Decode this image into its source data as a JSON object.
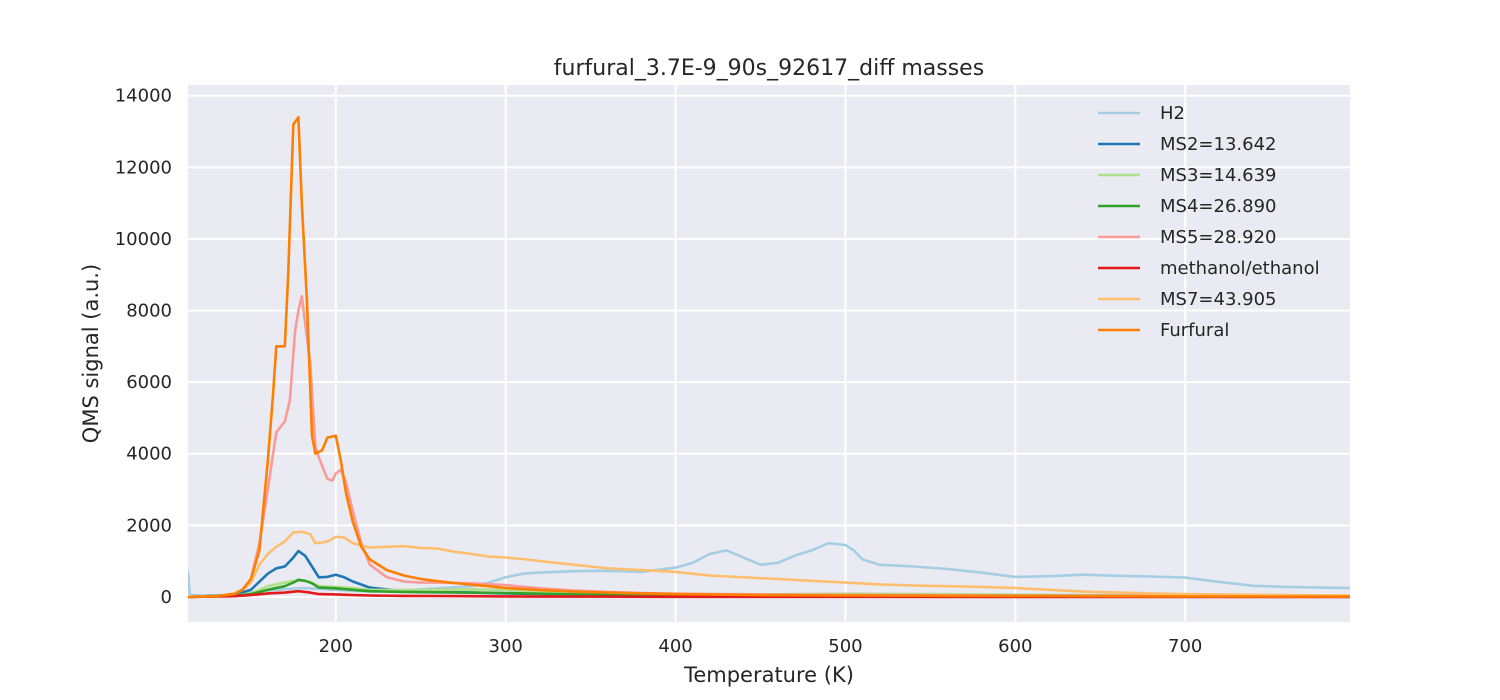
{
  "chart_data": {
    "type": "line",
    "title": "furfural_3.7E-9_90s_92617_diff masses",
    "xlabel": "Temperature (K)",
    "ylabel": "QMS signal (a.u.)",
    "xlim": [
      113,
      797
    ],
    "ylim": [
      -700,
      14300
    ],
    "xticks": [
      200,
      300,
      400,
      500,
      600,
      700
    ],
    "yticks": [
      0,
      2000,
      4000,
      6000,
      8000,
      10000,
      12000,
      14000
    ],
    "grid": true,
    "legend_position": "top-right",
    "series": [
      {
        "name": "H2",
        "color": "#a6cee3",
        "x": [
          113,
          114,
          115,
          120,
          140,
          160,
          180,
          200,
          220,
          240,
          260,
          280,
          290,
          300,
          310,
          320,
          340,
          360,
          380,
          400,
          410,
          420,
          430,
          440,
          450,
          460,
          470,
          480,
          490,
          500,
          505,
          510,
          520,
          540,
          560,
          580,
          600,
          620,
          640,
          660,
          680,
          700,
          720,
          740,
          760,
          780,
          797
        ],
        "y": [
          700,
          100,
          50,
          40,
          60,
          180,
          250,
          200,
          150,
          180,
          240,
          300,
          400,
          550,
          650,
          680,
          720,
          730,
          700,
          820,
          950,
          1200,
          1300,
          1100,
          900,
          950,
          1150,
          1300,
          1500,
          1450,
          1300,
          1050,
          900,
          850,
          780,
          680,
          560,
          580,
          620,
          590,
          570,
          540,
          420,
          310,
          280,
          260,
          250
        ]
      },
      {
        "name": "MS2=13.642",
        "color": "#1f78b4",
        "x": [
          113,
          140,
          150,
          160,
          165,
          170,
          175,
          178,
          182,
          186,
          190,
          195,
          200,
          205,
          210,
          220,
          240,
          260,
          280,
          300,
          320,
          340,
          360,
          400,
          500,
          600,
          700,
          797
        ],
        "y": [
          0,
          50,
          200,
          650,
          800,
          850,
          1100,
          1280,
          1150,
          850,
          550,
          560,
          620,
          550,
          430,
          260,
          160,
          140,
          120,
          100,
          80,
          70,
          60,
          50,
          40,
          30,
          25,
          20
        ]
      },
      {
        "name": "MS3=14.639",
        "color": "#b2df8a",
        "x": [
          113,
          140,
          150,
          160,
          170,
          175,
          180,
          185,
          190,
          200,
          210,
          220,
          240,
          260,
          280,
          300,
          320,
          340,
          360,
          400,
          450,
          500,
          550,
          600,
          700,
          797
        ],
        "y": [
          0,
          30,
          100,
          300,
          400,
          450,
          460,
          420,
          300,
          280,
          250,
          200,
          190,
          200,
          210,
          200,
          150,
          130,
          100,
          80,
          70,
          90,
          80,
          60,
          40,
          30
        ]
      },
      {
        "name": "MS4=26.890",
        "color": "#33a02c",
        "x": [
          113,
          140,
          150,
          160,
          170,
          175,
          178,
          182,
          186,
          190,
          200,
          210,
          220,
          240,
          260,
          280,
          300,
          320,
          340,
          400,
          500,
          600,
          700,
          797
        ],
        "y": [
          0,
          30,
          80,
          200,
          300,
          400,
          480,
          450,
          380,
          260,
          240,
          200,
          160,
          140,
          130,
          120,
          110,
          90,
          70,
          50,
          50,
          40,
          30,
          20
        ]
      },
      {
        "name": "MS5=28.920",
        "color": "#fb9a99",
        "x": [
          113,
          130,
          140,
          145,
          150,
          155,
          160,
          165,
          170,
          173,
          176,
          178,
          180,
          185,
          188,
          190,
          195,
          198,
          200,
          203,
          206,
          210,
          215,
          220,
          230,
          240,
          250,
          260,
          280,
          300,
          320,
          340,
          360,
          380,
          400,
          450,
          500,
          600,
          700,
          797
        ],
        "y": [
          0,
          20,
          80,
          200,
          500,
          1500,
          3000,
          4600,
          4900,
          5500,
          7400,
          8000,
          8400,
          6500,
          4200,
          3900,
          3300,
          3250,
          3450,
          3550,
          3200,
          2400,
          1500,
          900,
          550,
          430,
          400,
          400,
          380,
          330,
          240,
          180,
          140,
          110,
          90,
          70,
          60,
          40,
          30,
          20
        ]
      },
      {
        "name": "methanol/ethanol",
        "color": "#e31a1c",
        "x": [
          113,
          140,
          150,
          160,
          170,
          178,
          185,
          190,
          200,
          210,
          220,
          240,
          260,
          280,
          300,
          320,
          350,
          400,
          500,
          600,
          700,
          797
        ],
        "y": [
          0,
          20,
          50,
          100,
          120,
          160,
          120,
          80,
          70,
          50,
          40,
          30,
          25,
          20,
          15,
          10,
          10,
          5,
          5,
          0,
          0,
          0
        ]
      },
      {
        "name": "MS7=43.905",
        "color": "#fdbf6f",
        "x": [
          113,
          130,
          140,
          145,
          150,
          155,
          160,
          165,
          170,
          175,
          180,
          185,
          188,
          192,
          195,
          200,
          205,
          210,
          220,
          230,
          240,
          250,
          260,
          270,
          280,
          290,
          300,
          310,
          320,
          330,
          340,
          350,
          360,
          380,
          400,
          420,
          440,
          460,
          480,
          500,
          520,
          540,
          560,
          580,
          600,
          620,
          640,
          660,
          680,
          700,
          740,
          797
        ],
        "y": [
          0,
          30,
          100,
          200,
          400,
          900,
          1200,
          1400,
          1550,
          1800,
          1820,
          1750,
          1500,
          1520,
          1550,
          1680,
          1660,
          1500,
          1380,
          1400,
          1420,
          1370,
          1350,
          1260,
          1200,
          1130,
          1100,
          1060,
          1000,
          950,
          900,
          850,
          800,
          750,
          700,
          600,
          550,
          500,
          450,
          400,
          350,
          320,
          300,
          280,
          250,
          200,
          150,
          120,
          100,
          80,
          60,
          40
        ]
      },
      {
        "name": "Furfural",
        "color": "#ff7f00",
        "x": [
          113,
          130,
          140,
          145,
          150,
          155,
          160,
          163,
          165,
          170,
          172,
          175,
          178,
          180,
          183,
          186,
          188,
          192,
          195,
          200,
          203,
          206,
          210,
          215,
          220,
          230,
          240,
          250,
          260,
          270,
          280,
          290,
          300,
          320,
          340,
          360,
          380,
          400,
          450,
          500,
          600,
          700,
          797
        ],
        "y": [
          0,
          20,
          80,
          200,
          500,
          1300,
          3800,
          5600,
          7000,
          7000,
          9000,
          13200,
          13400,
          11000,
          8300,
          4500,
          4000,
          4100,
          4450,
          4500,
          3800,
          2900,
          2100,
          1400,
          1050,
          750,
          600,
          500,
          440,
          390,
          340,
          300,
          250,
          190,
          150,
          120,
          100,
          80,
          50,
          40,
          25,
          15,
          10
        ]
      }
    ]
  }
}
